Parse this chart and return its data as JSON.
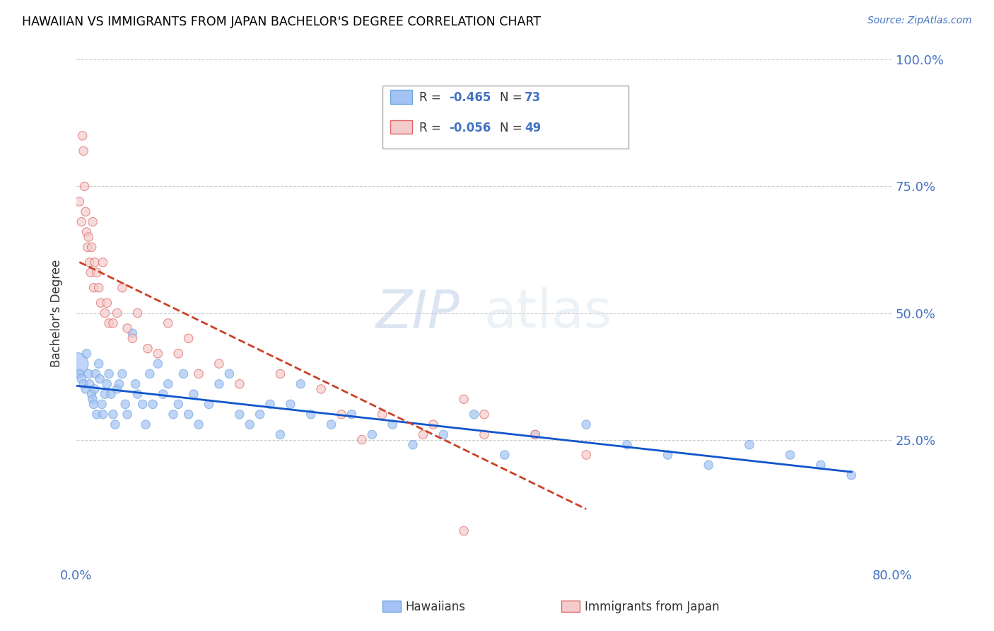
{
  "title": "HAWAIIAN VS IMMIGRANTS FROM JAPAN BACHELOR'S DEGREE CORRELATION CHART",
  "source": "Source: ZipAtlas.com",
  "ylabel": "Bachelor's Degree",
  "watermark_zip": "ZIP",
  "watermark_atlas": "atlas",
  "background_color": "#ffffff",
  "grid_color": "#cccccc",
  "title_color": "#000000",
  "label_color": "#4472c4",
  "hawaii_color": "#a4c2f4",
  "japan_color": "#f4cccc",
  "hawaii_edge_color": "#6fa8dc",
  "japan_edge_color": "#e06666",
  "hawaii_line_color": "#1155cc",
  "japan_line_color": "#cc4125",
  "xlim": [
    0.0,
    0.8
  ],
  "ylim": [
    0.0,
    1.0
  ],
  "hawaii_R": -0.465,
  "hawaii_N": 73,
  "japan_R": -0.056,
  "japan_N": 49,
  "hawaiians_x": [
    0.001,
    0.003,
    0.005,
    0.007,
    0.009,
    0.01,
    0.012,
    0.013,
    0.015,
    0.016,
    0.017,
    0.018,
    0.019,
    0.02,
    0.022,
    0.023,
    0.025,
    0.026,
    0.028,
    0.03,
    0.032,
    0.034,
    0.036,
    0.038,
    0.04,
    0.042,
    0.045,
    0.048,
    0.05,
    0.055,
    0.058,
    0.06,
    0.065,
    0.068,
    0.072,
    0.075,
    0.08,
    0.085,
    0.09,
    0.095,
    0.1,
    0.105,
    0.11,
    0.115,
    0.12,
    0.13,
    0.14,
    0.15,
    0.16,
    0.17,
    0.18,
    0.19,
    0.2,
    0.21,
    0.22,
    0.23,
    0.25,
    0.27,
    0.29,
    0.31,
    0.33,
    0.36,
    0.39,
    0.42,
    0.45,
    0.5,
    0.54,
    0.58,
    0.62,
    0.66,
    0.7,
    0.73,
    0.76
  ],
  "hawaiians_y": [
    0.4,
    0.38,
    0.37,
    0.36,
    0.35,
    0.42,
    0.38,
    0.36,
    0.34,
    0.33,
    0.32,
    0.35,
    0.38,
    0.3,
    0.4,
    0.37,
    0.32,
    0.3,
    0.34,
    0.36,
    0.38,
    0.34,
    0.3,
    0.28,
    0.35,
    0.36,
    0.38,
    0.32,
    0.3,
    0.46,
    0.36,
    0.34,
    0.32,
    0.28,
    0.38,
    0.32,
    0.4,
    0.34,
    0.36,
    0.3,
    0.32,
    0.38,
    0.3,
    0.34,
    0.28,
    0.32,
    0.36,
    0.38,
    0.3,
    0.28,
    0.3,
    0.32,
    0.26,
    0.32,
    0.36,
    0.3,
    0.28,
    0.3,
    0.26,
    0.28,
    0.24,
    0.26,
    0.3,
    0.22,
    0.26,
    0.28,
    0.24,
    0.22,
    0.2,
    0.24,
    0.22,
    0.2,
    0.18
  ],
  "hawaiians_size": [
    500,
    80,
    80,
    80,
    80,
    80,
    80,
    80,
    80,
    80,
    80,
    80,
    80,
    80,
    80,
    80,
    80,
    80,
    80,
    80,
    80,
    80,
    80,
    80,
    80,
    80,
    80,
    80,
    80,
    80,
    80,
    80,
    80,
    80,
    80,
    80,
    80,
    80,
    80,
    80,
    80,
    80,
    80,
    80,
    80,
    80,
    80,
    80,
    80,
    80,
    80,
    80,
    80,
    80,
    80,
    80,
    80,
    80,
    80,
    80,
    80,
    80,
    80,
    80,
    80,
    80,
    80,
    80,
    80,
    80,
    80,
    80,
    80
  ],
  "japan_x": [
    0.003,
    0.005,
    0.006,
    0.007,
    0.008,
    0.009,
    0.01,
    0.011,
    0.012,
    0.013,
    0.014,
    0.015,
    0.016,
    0.017,
    0.018,
    0.02,
    0.022,
    0.024,
    0.026,
    0.028,
    0.03,
    0.032,
    0.036,
    0.04,
    0.045,
    0.05,
    0.055,
    0.06,
    0.07,
    0.08,
    0.09,
    0.1,
    0.11,
    0.12,
    0.14,
    0.16,
    0.2,
    0.24,
    0.26,
    0.3,
    0.35,
    0.38,
    0.4,
    0.45,
    0.5,
    0.4,
    0.34,
    0.28,
    0.38
  ],
  "japan_y": [
    0.72,
    0.68,
    0.85,
    0.82,
    0.75,
    0.7,
    0.66,
    0.63,
    0.65,
    0.6,
    0.58,
    0.63,
    0.68,
    0.55,
    0.6,
    0.58,
    0.55,
    0.52,
    0.6,
    0.5,
    0.52,
    0.48,
    0.48,
    0.5,
    0.55,
    0.47,
    0.45,
    0.5,
    0.43,
    0.42,
    0.48,
    0.42,
    0.45,
    0.38,
    0.4,
    0.36,
    0.38,
    0.35,
    0.3,
    0.3,
    0.28,
    0.33,
    0.26,
    0.26,
    0.22,
    0.3,
    0.26,
    0.25,
    0.07
  ],
  "japan_size": [
    80,
    80,
    80,
    80,
    80,
    80,
    80,
    80,
    80,
    80,
    80,
    80,
    80,
    80,
    80,
    80,
    80,
    80,
    80,
    80,
    80,
    80,
    80,
    80,
    80,
    80,
    80,
    80,
    80,
    80,
    80,
    80,
    80,
    80,
    80,
    80,
    80,
    80,
    80,
    80,
    80,
    80,
    80,
    80,
    80,
    80,
    80,
    80,
    80
  ]
}
